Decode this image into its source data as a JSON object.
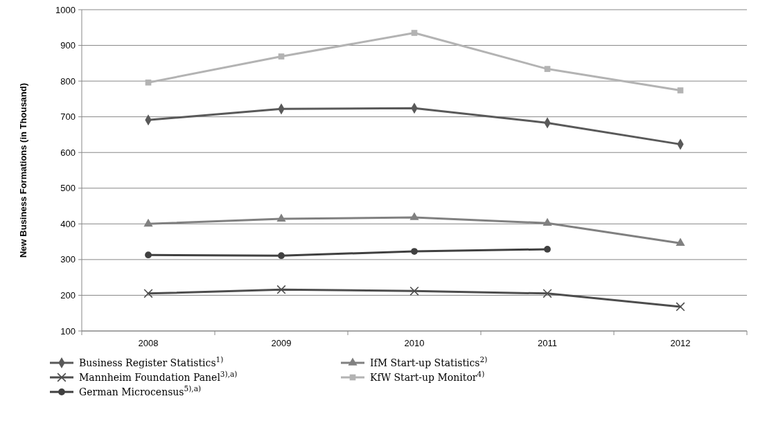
{
  "chart_data": {
    "type": "line",
    "ylabel": "New Business Formations (in Thousand)",
    "categories": [
      "2008",
      "2009",
      "2010",
      "2011",
      "2012"
    ],
    "ylim": [
      100,
      1000
    ],
    "yticks": [
      100,
      200,
      300,
      400,
      500,
      600,
      700,
      800,
      900,
      1000
    ],
    "grid": "y",
    "legend": "bottom",
    "line_style": "solid",
    "series": [
      {
        "name": "Business Register Statistics$^{1)}$",
        "color": "#595959",
        "marker": "diamond",
        "values": [
          691,
          722,
          724,
          683,
          623
        ]
      },
      {
        "name": "IfM Start-up Statistics$^{2)}$",
        "color": "#808080",
        "marker": "triangle",
        "values": [
          400,
          414,
          418,
          402,
          346
        ]
      },
      {
        "name": "Mannheim Foundation Panel$^{3),a)}$",
        "color": "#4d4d4d",
        "marker": "cross",
        "values": [
          205,
          216,
          212,
          205,
          168
        ]
      },
      {
        "name": "KfW Start-up Monitor$^{4)}$",
        "color": "#b3b3b3",
        "marker": "square",
        "values": [
          796,
          869,
          935,
          834,
          774
        ]
      },
      {
        "name": "German Microcensus$^{5),a)}$",
        "color": "#404040",
        "marker": "circle",
        "values": [
          313,
          311,
          323,
          329,
          null
        ]
      }
    ]
  }
}
